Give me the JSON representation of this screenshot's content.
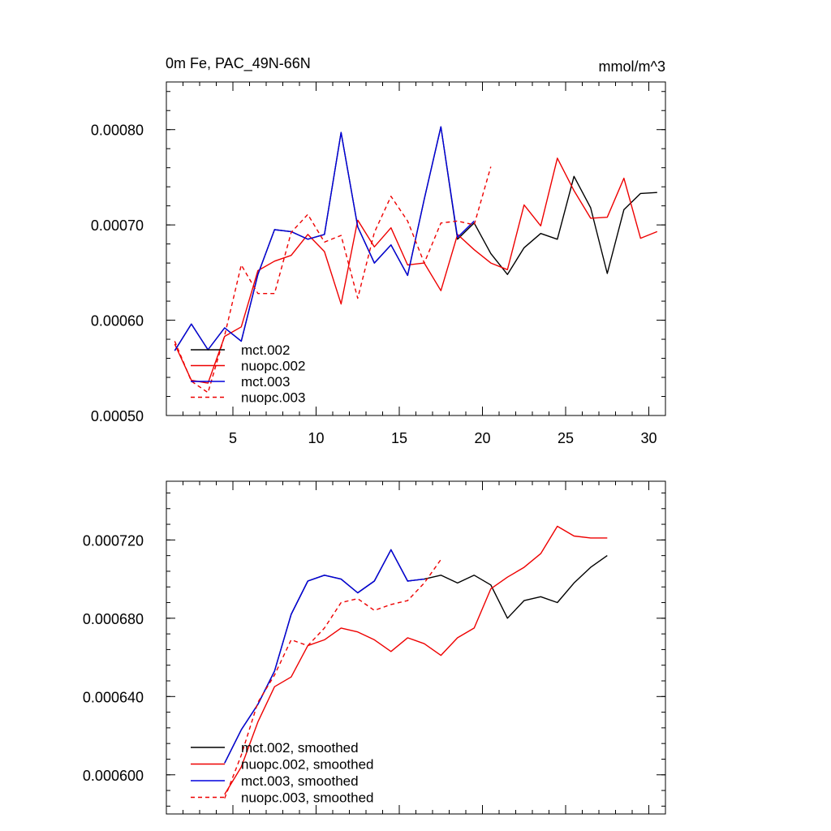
{
  "chart_data": [
    {
      "type": "line",
      "title": "0m Fe, PAC_49N-66N",
      "units": "mmol/m^3",
      "xlim": [
        1,
        31
      ],
      "ylim": [
        0.0005,
        0.00085
      ],
      "xticks": [
        {
          "value": 5,
          "label": "5"
        },
        {
          "value": 10,
          "label": "10"
        },
        {
          "value": 15,
          "label": "15"
        },
        {
          "value": 20,
          "label": "20"
        },
        {
          "value": 25,
          "label": "25"
        },
        {
          "value": 30,
          "label": "30"
        }
      ],
      "yticks": [
        {
          "value": 0.0005,
          "label": "0.00050"
        },
        {
          "value": 0.0006,
          "label": "0.00060"
        },
        {
          "value": 0.0007,
          "label": "0.00070"
        },
        {
          "value": 0.0008,
          "label": "0.00080"
        }
      ],
      "legend_position": "bottom-left",
      "series": [
        {
          "name": "mct.002",
          "color": "#000000",
          "dash": false,
          "x": [
            1.5,
            2.5,
            3.5,
            4.5,
            5.5,
            6.5,
            7.5,
            8.5,
            9.5,
            10.5,
            11.5,
            12.5,
            13.5,
            14.5,
            15.5,
            16.5,
            17.5,
            18.5,
            19.5,
            20.5,
            21.5,
            22.5,
            23.5,
            24.5,
            25.5,
            26.5,
            27.5,
            28.5,
            29.5,
            30.5
          ],
          "values": [
            0.000568,
            0.000596,
            0.000569,
            0.000592,
            0.000578,
            0.000648,
            0.000695,
            0.000693,
            0.000685,
            0.00069,
            0.000797,
            0.000698,
            0.00066,
            0.000679,
            0.000647,
            0.000727,
            0.000803,
            0.000685,
            0.000702,
            0.00067,
            0.000648,
            0.000676,
            0.000691,
            0.000685,
            0.000751,
            0.000718,
            0.000649,
            0.000716,
            0.000733,
            0.000734
          ]
        },
        {
          "name": "nuopc.002",
          "color": "#ee0000",
          "dash": false,
          "x": [
            1.5,
            2.5,
            3.5,
            4.5,
            5.5,
            6.5,
            7.5,
            8.5,
            9.5,
            10.5,
            11.5,
            12.5,
            13.5,
            14.5,
            15.5,
            16.5,
            17.5,
            18.5,
            19.5,
            20.5,
            21.5,
            22.5,
            23.5,
            24.5,
            25.5,
            26.5,
            27.5,
            28.5,
            29.5,
            30.5
          ],
          "values": [
            0.000575,
            0.000537,
            0.000534,
            0.000583,
            0.000593,
            0.000652,
            0.000662,
            0.000668,
            0.00069,
            0.000672,
            0.000617,
            0.000705,
            0.000677,
            0.000697,
            0.000658,
            0.00066,
            0.000631,
            0.00069,
            0.000674,
            0.00066,
            0.000653,
            0.000721,
            0.000699,
            0.00077,
            0.000736,
            0.000707,
            0.000708,
            0.000749,
            0.000686,
            0.000693
          ]
        },
        {
          "name": "mct.003",
          "color": "#0000dd",
          "dash": false,
          "x": [
            1.5,
            2.5,
            3.5,
            4.5,
            5.5,
            6.5,
            7.5,
            8.5,
            9.5,
            10.5,
            11.5,
            12.5,
            13.5,
            14.5,
            15.5,
            16.5,
            17.5,
            18.5,
            19.5
          ],
          "values": [
            0.000568,
            0.000596,
            0.000569,
            0.000592,
            0.000578,
            0.000648,
            0.000695,
            0.000693,
            0.000685,
            0.00069,
            0.000797,
            0.000698,
            0.00066,
            0.000679,
            0.000647,
            0.000727,
            0.000803,
            0.000687,
            0.000704
          ]
        },
        {
          "name": "nuopc.003",
          "color": "#ee0000",
          "dash": true,
          "x": [
            1.5,
            2.5,
            3.5,
            4.5,
            5.5,
            6.5,
            7.5,
            8.5,
            9.5,
            10.5,
            11.5,
            12.5,
            13.5,
            14.5,
            15.5,
            16.5,
            17.5,
            18.5,
            19.5,
            20.5
          ],
          "values": [
            0.000578,
            0.000536,
            0.000524,
            0.000584,
            0.000658,
            0.000628,
            0.000628,
            0.000692,
            0.000711,
            0.000682,
            0.000689,
            0.000623,
            0.000692,
            0.00073,
            0.000704,
            0.00066,
            0.000702,
            0.000704,
            0.0007,
            0.000761
          ]
        }
      ]
    },
    {
      "type": "line",
      "title": "",
      "xlim": [
        1,
        31
      ],
      "ylim": [
        0.00058,
        0.00075
      ],
      "xticks": [
        {
          "value": 5,
          "label": ""
        },
        {
          "value": 10,
          "label": ""
        },
        {
          "value": 15,
          "label": ""
        },
        {
          "value": 20,
          "label": ""
        },
        {
          "value": 25,
          "label": ""
        },
        {
          "value": 30,
          "label": ""
        }
      ],
      "yticks": [
        {
          "value": 0.0006,
          "label": "0.000600"
        },
        {
          "value": 0.00064,
          "label": "0.000640"
        },
        {
          "value": 0.00068,
          "label": "0.000680"
        },
        {
          "value": 0.00072,
          "label": "0.000720"
        }
      ],
      "legend_position": "bottom-left",
      "series": [
        {
          "name": "mct.002, smoothed",
          "color": "#000000",
          "dash": false,
          "x": [
            4.5,
            5.5,
            6.5,
            7.5,
            8.5,
            9.5,
            10.5,
            11.5,
            12.5,
            13.5,
            14.5,
            15.5,
            16.5,
            17.5,
            18.5,
            19.5,
            20.5,
            21.5,
            22.5,
            23.5,
            24.5,
            25.5,
            26.5,
            27.5
          ],
          "values": [
            0.000606,
            0.000623,
            0.000636,
            0.000653,
            0.000682,
            0.000699,
            0.000702,
            0.0007,
            0.000693,
            0.000699,
            0.000715,
            0.000699,
            0.0007,
            0.000702,
            0.000698,
            0.000702,
            0.000697,
            0.00068,
            0.000689,
            0.000691,
            0.000688,
            0.000698,
            0.000706,
            0.000712
          ]
        },
        {
          "name": "nuopc.002, smoothed",
          "color": "#ee0000",
          "dash": false,
          "x": [
            4.5,
            5.5,
            6.5,
            7.5,
            8.5,
            9.5,
            10.5,
            11.5,
            12.5,
            13.5,
            14.5,
            15.5,
            16.5,
            17.5,
            18.5,
            19.5,
            20.5,
            21.5,
            22.5,
            23.5,
            24.5,
            25.5,
            26.5,
            27.5
          ],
          "values": [
            0.00059,
            0.000604,
            0.000627,
            0.000645,
            0.00065,
            0.000666,
            0.000669,
            0.000675,
            0.000673,
            0.000669,
            0.000663,
            0.00067,
            0.000667,
            0.000661,
            0.00067,
            0.000675,
            0.000695,
            0.000701,
            0.000706,
            0.000713,
            0.000727,
            0.000722,
            0.000721,
            0.000721
          ]
        },
        {
          "name": "mct.003, smoothed",
          "color": "#0000dd",
          "dash": false,
          "x": [
            4.5,
            5.5,
            6.5,
            7.5,
            8.5,
            9.5,
            10.5,
            11.5,
            12.5,
            13.5,
            14.5,
            15.5,
            16.5
          ],
          "values": [
            0.000606,
            0.000623,
            0.000636,
            0.000653,
            0.000682,
            0.000699,
            0.000702,
            0.0007,
            0.000693,
            0.000699,
            0.000715,
            0.000699,
            0.0007
          ]
        },
        {
          "name": "nuopc.003, smoothed",
          "color": "#ee0000",
          "dash": true,
          "x": [
            4.5,
            5.5,
            6.5,
            7.5,
            8.5,
            9.5,
            10.5,
            11.5,
            12.5,
            13.5,
            14.5,
            15.5,
            16.5,
            17.5
          ],
          "values": [
            0.000588,
            0.00061,
            0.000637,
            0.000651,
            0.000669,
            0.000666,
            0.000675,
            0.000688,
            0.00069,
            0.000684,
            0.000687,
            0.000689,
            0.000698,
            0.00071
          ]
        }
      ]
    }
  ]
}
